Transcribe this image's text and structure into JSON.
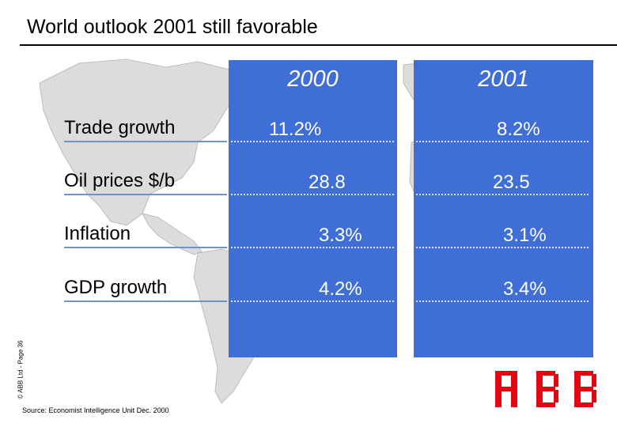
{
  "slide": {
    "title": "World outlook 2001 still favorable",
    "side_note": "© ABB Ltd - Page 36",
    "source": "Source: Economist Intelligence Unit Dec. 2000",
    "logo_text": "ABB"
  },
  "table": {
    "columns": [
      "2000",
      "2001"
    ],
    "rows": [
      {
        "label": "Trade growth",
        "values": [
          "11.2%",
          "8.2%"
        ]
      },
      {
        "label": "Oil prices $/b",
        "values": [
          "28.8",
          "23.5"
        ]
      },
      {
        "label": "Inflation",
        "values": [
          "3.3%",
          "3.1%"
        ]
      },
      {
        "label": "GDP growth",
        "values": [
          "4.2%",
          "3.4%"
        ]
      }
    ]
  },
  "colors": {
    "band": "#3f6fd6",
    "map": "#d9d9d9",
    "logo": "#e30613"
  }
}
